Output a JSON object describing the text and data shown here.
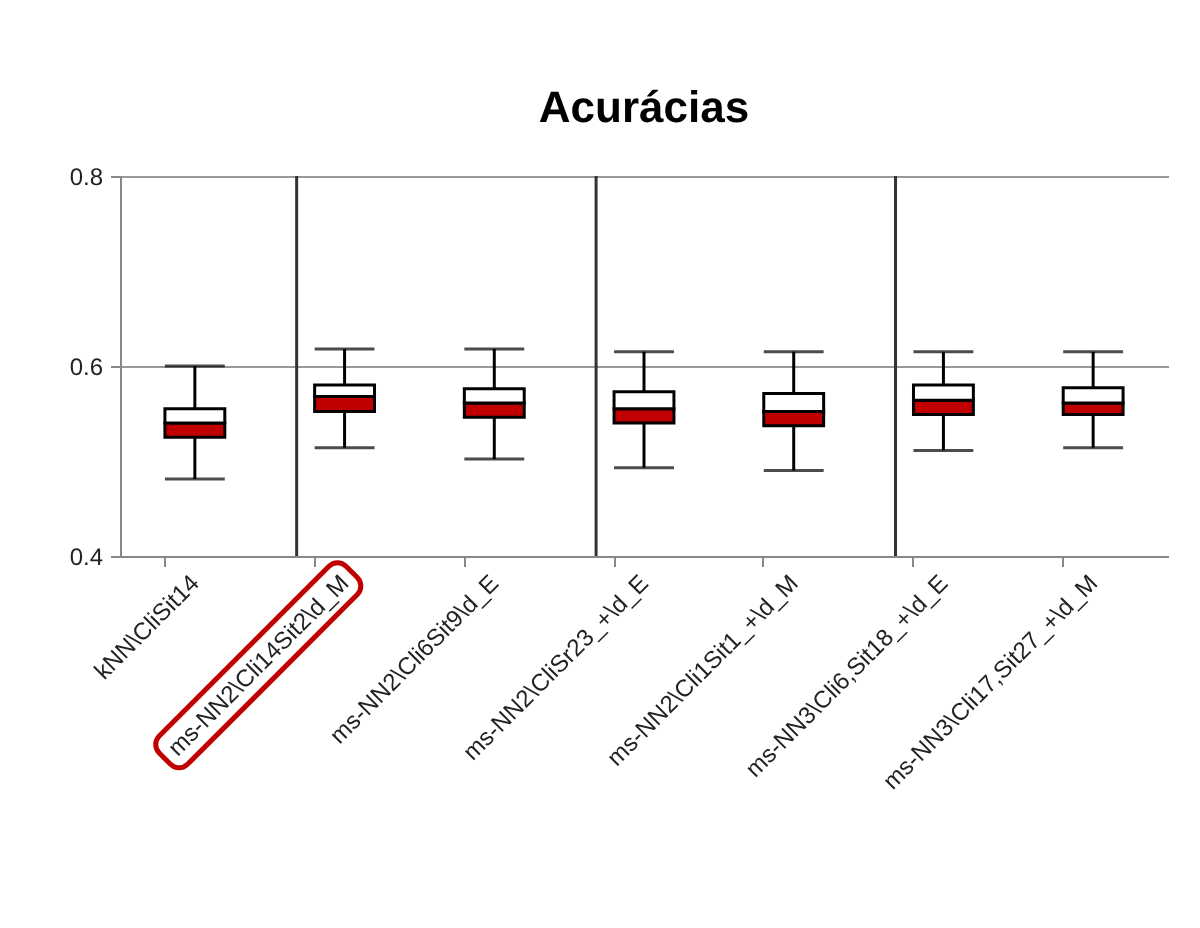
{
  "chart_data": {
    "type": "box",
    "title": "Acurácias",
    "categories": [
      "kNN\\CliSit14",
      "ms-NN2\\Cli14Sit2\\d_M",
      "ms-NN2\\Cli6Sit9\\d_E",
      "ms-NN2\\CliSr23_+\\d_E",
      "ms-NN2\\Cli1Sit1_+\\d_M",
      "ms-NN3\\Cli6,Sit18_+\\d_E",
      "ms-NN3\\Cli17,Sit27_+\\d_M"
    ],
    "boxes": [
      {
        "low": 0.481,
        "q1": 0.525,
        "median": 0.54,
        "q3": 0.555,
        "high": 0.6
      },
      {
        "low": 0.514,
        "q1": 0.552,
        "median": 0.568,
        "q3": 0.58,
        "high": 0.618
      },
      {
        "low": 0.502,
        "q1": 0.546,
        "median": 0.561,
        "q3": 0.576,
        "high": 0.618
      },
      {
        "low": 0.493,
        "q1": 0.54,
        "median": 0.555,
        "q3": 0.573,
        "high": 0.615
      },
      {
        "low": 0.49,
        "q1": 0.537,
        "median": 0.552,
        "q3": 0.571,
        "high": 0.615
      },
      {
        "low": 0.511,
        "q1": 0.549,
        "median": 0.564,
        "q3": 0.58,
        "high": 0.615
      },
      {
        "low": 0.514,
        "q1": 0.549,
        "median": 0.561,
        "q3": 0.577,
        "high": 0.615
      }
    ],
    "color": "#c00000",
    "ylim": [
      0.4,
      0.8
    ],
    "yticks": [
      0.4,
      0.6,
      0.8
    ],
    "grid": "y",
    "ref_lines": [
      {
        "axis": "x",
        "value": "ms-NN2\\Cli14Sit2\\d_M"
      },
      {
        "axis": "x",
        "value": "ms-NN2\\CliSr23_+\\d_E"
      },
      {
        "axis": "x",
        "value": "ms-NN3\\Cli6,Sit18_+\\d_E"
      }
    ]
  }
}
